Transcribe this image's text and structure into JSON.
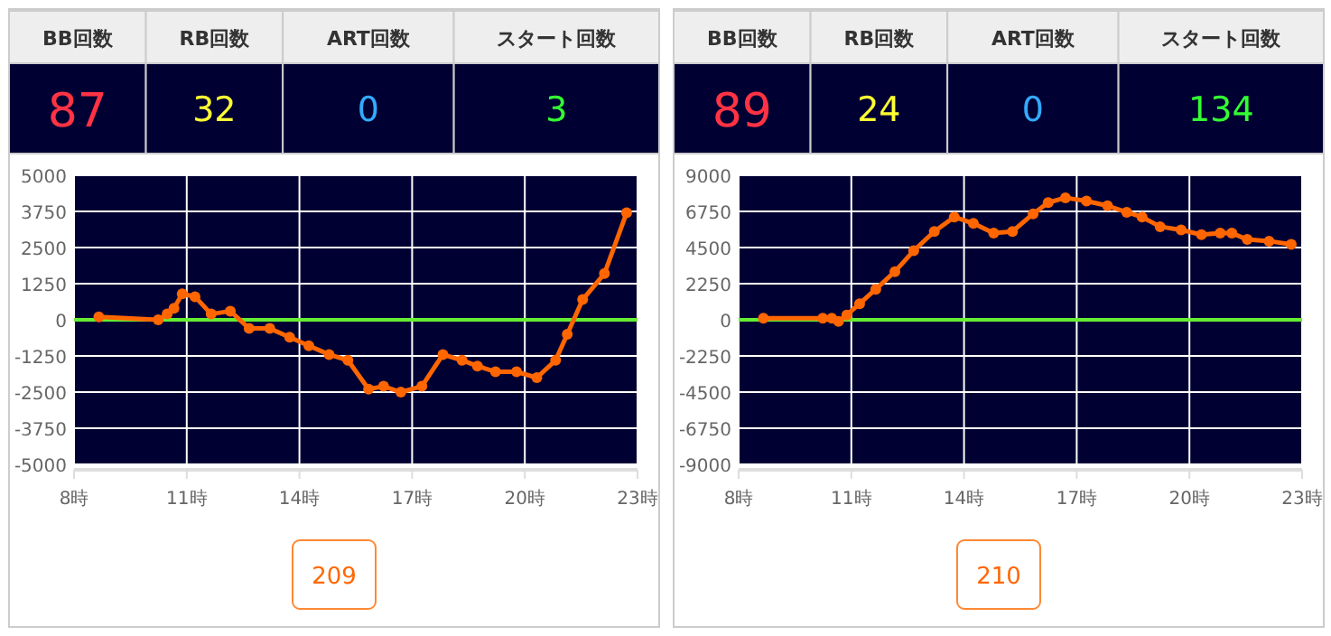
{
  "chart_data": [
    {
      "type": "other",
      "categories": [
        "BB回数",
        "RB回数",
        "ART回数",
        "スタート回数"
      ],
      "values": [
        87,
        32,
        0,
        3
      ],
      "data_labels": true
    },
    {
      "type": "line",
      "xlim": [
        8,
        23
      ],
      "ylim": [
        -5000,
        5000
      ],
      "xticks": [
        {
          "value": 8,
          "label": "8時"
        },
        {
          "value": 11,
          "label": "11時"
        },
        {
          "value": 14,
          "label": "14時"
        },
        {
          "value": 17,
          "label": "17時"
        },
        {
          "value": 20,
          "label": "20時"
        },
        {
          "value": 23,
          "label": "23時"
        }
      ],
      "yticks": [
        5000,
        3750,
        2500,
        1250,
        0,
        -1250,
        -2500,
        -3750,
        -5000
      ],
      "grid": true,
      "marker": "circle",
      "line_style": "solid",
      "ref_lines": [
        {
          "axis": "y",
          "value": 0,
          "color": "#66ee33"
        }
      ],
      "annotations": [
        "209"
      ],
      "series": [
        {
          "color": "#ff6600",
          "x": [
            8.66,
            10.24,
            10.48,
            10.66,
            10.88,
            11.22,
            11.65,
            12.16,
            12.66,
            13.21,
            13.74,
            14.25,
            14.79,
            15.29,
            15.84,
            16.24,
            16.7,
            17.26,
            17.82,
            18.33,
            18.74,
            19.22,
            19.78,
            20.32,
            20.82,
            21.13,
            21.54,
            22.12,
            22.71
          ],
          "values": [
            100,
            0,
            200,
            400,
            900,
            800,
            200,
            300,
            -300,
            -300,
            -600,
            -900,
            -1200,
            -1400,
            -2400,
            -2300,
            -2500,
            -2300,
            -1200,
            -1400,
            -1600,
            -1800,
            -1800,
            -2000,
            -1400,
            -500,
            700,
            1600,
            3700
          ]
        }
      ]
    },
    {
      "type": "other",
      "categories": [
        "BB回数",
        "RB回数",
        "ART回数",
        "スタート回数"
      ],
      "values": [
        89,
        24,
        0,
        134
      ],
      "data_labels": true
    },
    {
      "type": "line",
      "xlim": [
        8,
        23
      ],
      "ylim": [
        -9000,
        9000
      ],
      "xticks": [
        {
          "value": 8,
          "label": "8時"
        },
        {
          "value": 11,
          "label": "11時"
        },
        {
          "value": 14,
          "label": "14時"
        },
        {
          "value": 17,
          "label": "17時"
        },
        {
          "value": 20,
          "label": "20時"
        },
        {
          "value": 23,
          "label": "23時"
        }
      ],
      "yticks": [
        9000,
        6750,
        4500,
        2250,
        0,
        -2250,
        -4500,
        -6750,
        -9000
      ],
      "grid": true,
      "marker": "circle",
      "line_style": "solid",
      "ref_lines": [
        {
          "axis": "y",
          "value": 0,
          "color": "#66ee33"
        }
      ],
      "annotations": [
        "210"
      ],
      "series": [
        {
          "color": "#ff6600",
          "x": [
            8.66,
            10.24,
            10.48,
            10.66,
            10.88,
            11.22,
            11.65,
            12.16,
            12.66,
            13.21,
            13.74,
            14.25,
            14.79,
            15.29,
            15.84,
            16.24,
            16.7,
            17.26,
            17.82,
            18.33,
            18.74,
            19.22,
            19.78,
            20.32,
            20.82,
            21.13,
            21.54,
            22.12,
            22.71
          ],
          "values": [
            100,
            100,
            100,
            -100,
            300,
            1000,
            1900,
            3000,
            4300,
            5500,
            6400,
            6000,
            5400,
            5500,
            6600,
            7300,
            7600,
            7400,
            7100,
            6700,
            6400,
            5800,
            5600,
            5300,
            5400,
            5400,
            5000,
            4900,
            4700
          ]
        }
      ]
    }
  ]
}
